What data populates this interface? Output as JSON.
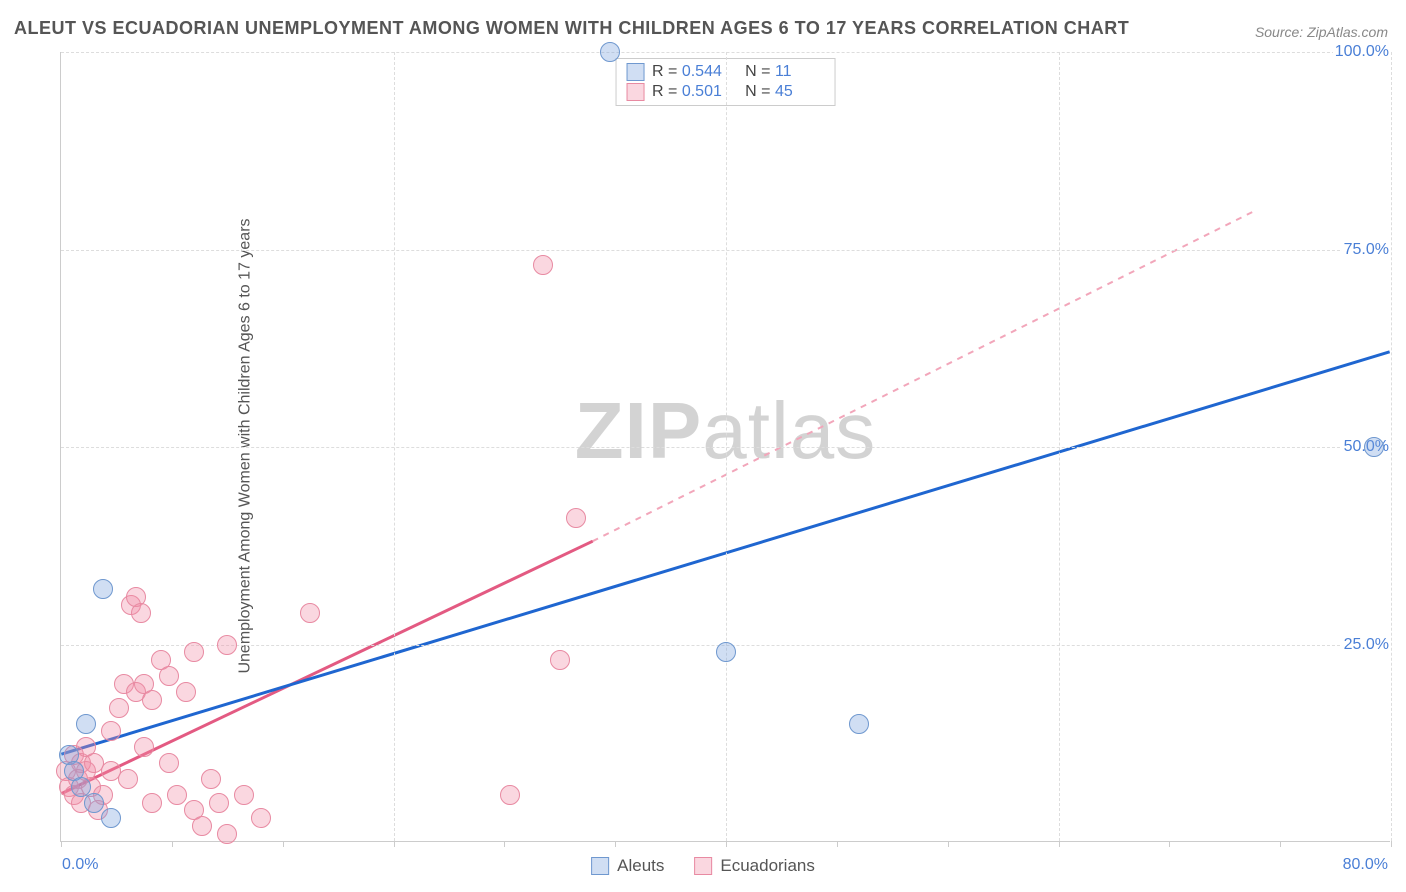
{
  "title": "ALEUT VS ECUADORIAN UNEMPLOYMENT AMONG WOMEN WITH CHILDREN AGES 6 TO 17 YEARS CORRELATION CHART",
  "source": "Source: ZipAtlas.com",
  "ylabel": "Unemployment Among Women with Children Ages 6 to 17 years",
  "watermark_a": "ZIP",
  "watermark_b": "atlas",
  "axes": {
    "xlim": [
      0,
      80
    ],
    "ylim": [
      0,
      100
    ],
    "xtick_left": "0.0%",
    "xtick_right": "80.0%",
    "yticks": [
      {
        "v": 25,
        "label": "25.0%"
      },
      {
        "v": 50,
        "label": "50.0%"
      },
      {
        "v": 75,
        "label": "75.0%"
      },
      {
        "v": 100,
        "label": "100.0%"
      }
    ],
    "xgrid": [
      20,
      40,
      60,
      80
    ],
    "xminor": [
      0,
      6.67,
      13.33,
      20,
      26.67,
      33.33,
      40,
      46.67,
      53.33,
      60,
      66.67,
      73.33,
      80
    ]
  },
  "colors": {
    "aleut_fill": "rgba(120,160,220,0.35)",
    "aleut_stroke": "#6f98cf",
    "ecua_fill": "rgba(240,140,165,0.35)",
    "ecua_stroke": "#e88aa2",
    "trend_blue": "#1f66d0",
    "trend_pink_solid": "#e35a82",
    "trend_pink_dash": "#f2a6ba",
    "grid": "#dddddd",
    "tick_text": "#4a7fd6"
  },
  "marker_radius": 10,
  "stats_legend": [
    {
      "series": "aleut",
      "R_label": "R =",
      "R": "0.544",
      "N_label": "N =",
      "N": "11"
    },
    {
      "series": "ecua",
      "R_label": "R =",
      "R": "0.501",
      "N_label": "N =",
      "N": "45"
    }
  ],
  "bottom_legend": [
    {
      "series": "aleut",
      "label": "Aleuts"
    },
    {
      "series": "ecua",
      "label": "Ecuadorians"
    }
  ],
  "trend_lines": {
    "blue": {
      "x1": 0,
      "y1": 11,
      "x2": 80,
      "y2": 62
    },
    "pink_solid": {
      "x1": 0,
      "y1": 6,
      "x2": 32,
      "y2": 38
    },
    "pink_dash": {
      "x1": 32,
      "y1": 38,
      "x2": 72,
      "y2": 80
    }
  },
  "points": {
    "aleut": [
      {
        "x": 0.5,
        "y": 11
      },
      {
        "x": 0.8,
        "y": 9
      },
      {
        "x": 1.2,
        "y": 7
      },
      {
        "x": 1.5,
        "y": 15
      },
      {
        "x": 2.0,
        "y": 5
      },
      {
        "x": 2.5,
        "y": 32
      },
      {
        "x": 3.0,
        "y": 3
      },
      {
        "x": 33.0,
        "y": 100
      },
      {
        "x": 40.0,
        "y": 24
      },
      {
        "x": 48.0,
        "y": 15
      },
      {
        "x": 79.0,
        "y": 50
      }
    ],
    "ecua": [
      {
        "x": 0.3,
        "y": 9
      },
      {
        "x": 0.5,
        "y": 7
      },
      {
        "x": 0.8,
        "y": 11
      },
      {
        "x": 0.8,
        "y": 6
      },
      {
        "x": 1.0,
        "y": 8
      },
      {
        "x": 1.2,
        "y": 10
      },
      {
        "x": 1.2,
        "y": 5
      },
      {
        "x": 1.5,
        "y": 9
      },
      {
        "x": 1.5,
        "y": 12
      },
      {
        "x": 1.8,
        "y": 7
      },
      {
        "x": 2.0,
        "y": 10
      },
      {
        "x": 2.2,
        "y": 4
      },
      {
        "x": 2.5,
        "y": 6
      },
      {
        "x": 3.0,
        "y": 9
      },
      {
        "x": 3.0,
        "y": 14
      },
      {
        "x": 3.5,
        "y": 17
      },
      {
        "x": 3.8,
        "y": 20
      },
      {
        "x": 4.0,
        "y": 8
      },
      {
        "x": 4.2,
        "y": 30
      },
      {
        "x": 4.5,
        "y": 31
      },
      {
        "x": 4.5,
        "y": 19
      },
      {
        "x": 4.8,
        "y": 29
      },
      {
        "x": 5.0,
        "y": 12
      },
      {
        "x": 5.0,
        "y": 20
      },
      {
        "x": 5.5,
        "y": 5
      },
      {
        "x": 5.5,
        "y": 18
      },
      {
        "x": 6.0,
        "y": 23
      },
      {
        "x": 6.5,
        "y": 10
      },
      {
        "x": 6.5,
        "y": 21
      },
      {
        "x": 7.0,
        "y": 6
      },
      {
        "x": 7.5,
        "y": 19
      },
      {
        "x": 8.0,
        "y": 4
      },
      {
        "x": 8.0,
        "y": 24
      },
      {
        "x": 8.5,
        "y": 2
      },
      {
        "x": 9.0,
        "y": 8
      },
      {
        "x": 9.5,
        "y": 5
      },
      {
        "x": 10.0,
        "y": 25
      },
      {
        "x": 10.0,
        "y": 1
      },
      {
        "x": 11.0,
        "y": 6
      },
      {
        "x": 12.0,
        "y": 3
      },
      {
        "x": 15.0,
        "y": 29
      },
      {
        "x": 27.0,
        "y": 6
      },
      {
        "x": 29.0,
        "y": 73
      },
      {
        "x": 30.0,
        "y": 23
      },
      {
        "x": 31.0,
        "y": 41
      }
    ]
  }
}
